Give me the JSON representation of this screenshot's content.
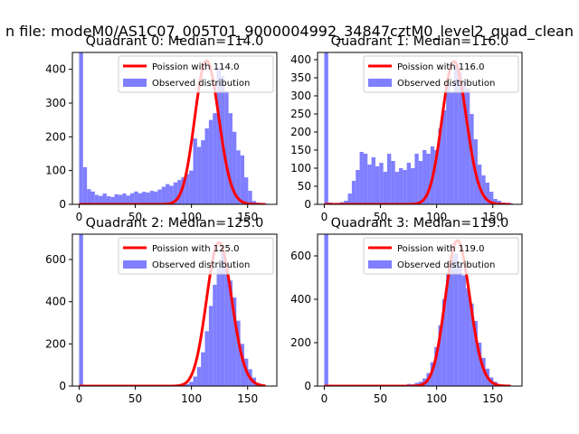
{
  "figure_title": "n file: modeM0/AS1C07_005T01_9000004992_34847cztM0_level2_quad_clean",
  "colors": {
    "hist": "#7f7fff",
    "fit": "#ff0000",
    "axes": "#000000",
    "background": "#ffffff"
  },
  "chart_data": [
    {
      "type": "bar",
      "title": "Quadrant 0: Median=114.0",
      "xlim": [
        -6,
        176
      ],
      "ylim": [
        0,
        450
      ],
      "xticks": [
        0,
        50,
        100,
        150
      ],
      "yticks": [
        0,
        100,
        200,
        300,
        400
      ],
      "bin_width": 3.5,
      "hist_x": [
        0,
        3.5,
        7,
        10.5,
        14,
        17.5,
        21,
        24.5,
        28,
        31.5,
        35,
        38.5,
        42,
        45.5,
        49,
        52.5,
        56,
        59.5,
        63,
        66.5,
        70,
        73.5,
        77,
        80.5,
        84,
        87.5,
        91,
        94.5,
        98,
        101.5,
        105,
        108.5,
        112,
        115.5,
        119,
        122.5,
        126,
        129.5,
        133,
        136.5,
        140,
        143.5,
        147,
        150.5,
        154,
        157.5,
        161,
        164.5
      ],
      "hist_values": [
        450,
        110,
        45,
        38,
        28,
        25,
        32,
        24,
        22,
        30,
        28,
        32,
        26,
        33,
        38,
        33,
        37,
        35,
        40,
        38,
        44,
        52,
        60,
        55,
        65,
        72,
        80,
        90,
        100,
        195,
        170,
        190,
        225,
        250,
        270,
        405,
        380,
        335,
        270,
        215,
        160,
        145,
        80,
        40,
        10,
        5,
        3,
        2
      ],
      "legend": [
        {
          "label": "Poission with 114.0",
          "kind": "line"
        },
        {
          "label": "Observed distribution",
          "kind": "patch"
        }
      ],
      "fit": {
        "lambda": 114.0,
        "scale": 425
      }
    },
    {
      "type": "bar",
      "title": "Quadrant 1: Median=116.0",
      "xlim": [
        -6,
        176
      ],
      "ylim": [
        0,
        420
      ],
      "xticks": [
        0,
        50,
        100,
        150
      ],
      "yticks": [
        0,
        50,
        100,
        150,
        200,
        250,
        300,
        350,
        400
      ],
      "bin_width": 3.5,
      "hist_x": [
        0,
        3.5,
        7,
        10.5,
        14,
        17.5,
        21,
        24.5,
        28,
        31.5,
        35,
        38.5,
        42,
        45.5,
        49,
        52.5,
        56,
        59.5,
        63,
        66.5,
        70,
        73.5,
        77,
        80.5,
        84,
        87.5,
        91,
        94.5,
        98,
        101.5,
        105,
        108.5,
        112,
        115.5,
        119,
        122.5,
        126,
        129.5,
        133,
        136.5,
        140,
        143.5,
        147,
        150.5,
        154,
        157.5,
        161,
        164.5
      ],
      "hist_values": [
        420,
        5,
        3,
        4,
        6,
        10,
        30,
        65,
        95,
        145,
        140,
        110,
        130,
        105,
        115,
        90,
        140,
        120,
        90,
        100,
        95,
        115,
        100,
        140,
        120,
        150,
        140,
        160,
        150,
        210,
        260,
        330,
        310,
        385,
        365,
        340,
        320,
        250,
        180,
        110,
        80,
        60,
        35,
        15,
        10,
        5,
        4,
        3
      ],
      "legend": [
        {
          "label": "Poission with 116.0",
          "kind": "line"
        },
        {
          "label": "Observed distribution",
          "kind": "patch"
        }
      ],
      "fit": {
        "lambda": 116.0,
        "scale": 395
      }
    },
    {
      "type": "bar",
      "title": "Quadrant 2: Median=125.0",
      "xlim": [
        -6,
        176
      ],
      "ylim": [
        0,
        720
      ],
      "xticks": [
        0,
        50,
        100,
        150
      ],
      "yticks": [
        0,
        200,
        400,
        600
      ],
      "bin_width": 3.5,
      "hist_x": [
        0,
        3.5,
        7,
        10.5,
        14,
        17.5,
        21,
        24.5,
        28,
        31.5,
        35,
        38.5,
        42,
        45.5,
        49,
        52.5,
        56,
        59.5,
        63,
        66.5,
        70,
        73.5,
        77,
        80.5,
        84,
        87.5,
        91,
        94.5,
        98,
        101.5,
        105,
        108.5,
        112,
        115.5,
        119,
        122.5,
        126,
        129.5,
        133,
        136.5,
        140,
        143.5,
        147,
        150.5,
        154,
        157.5,
        161,
        164.5
      ],
      "hist_values": [
        720,
        0,
        0,
        0,
        0,
        0,
        0,
        0,
        0,
        0,
        0,
        0,
        0,
        0,
        0,
        0,
        0,
        0,
        0,
        0,
        0,
        0,
        0,
        0,
        0,
        2,
        5,
        10,
        20,
        45,
        90,
        160,
        260,
        380,
        480,
        560,
        640,
        590,
        500,
        420,
        310,
        200,
        130,
        80,
        40,
        15,
        5,
        2
      ],
      "legend": [
        {
          "label": "Poission with 125.0",
          "kind": "line"
        },
        {
          "label": "Observed distribution",
          "kind": "patch"
        }
      ],
      "fit": {
        "lambda": 125.0,
        "scale": 680
      }
    },
    {
      "type": "bar",
      "title": "Quadrant 3: Median=119.0",
      "xlim": [
        -6,
        176
      ],
      "ylim": [
        0,
        700
      ],
      "xticks": [
        0,
        50,
        100,
        150
      ],
      "yticks": [
        0,
        200,
        400,
        600
      ],
      "bin_width": 3.5,
      "hist_x": [
        0,
        3.5,
        7,
        10.5,
        14,
        17.5,
        21,
        24.5,
        28,
        31.5,
        35,
        38.5,
        42,
        45.5,
        49,
        52.5,
        56,
        59.5,
        63,
        66.5,
        70,
        73.5,
        77,
        80.5,
        84,
        87.5,
        91,
        94.5,
        98,
        101.5,
        105,
        108.5,
        112,
        115.5,
        119,
        122.5,
        126,
        129.5,
        133,
        136.5,
        140,
        143.5,
        147,
        150.5,
        154,
        157.5,
        161,
        164.5
      ],
      "hist_values": [
        700,
        0,
        0,
        0,
        0,
        0,
        0,
        0,
        0,
        0,
        0,
        0,
        0,
        0,
        0,
        0,
        0,
        0,
        0,
        0,
        5,
        10,
        8,
        15,
        20,
        35,
        60,
        110,
        180,
        280,
        400,
        520,
        600,
        610,
        560,
        510,
        450,
        380,
        300,
        200,
        130,
        80,
        40,
        20,
        8,
        3,
        1,
        0
      ],
      "legend": [
        {
          "label": "Poission with 119.0",
          "kind": "line"
        },
        {
          "label": "Observed distribution",
          "kind": "patch"
        }
      ],
      "fit": {
        "lambda": 119.0,
        "scale": 670
      }
    }
  ]
}
